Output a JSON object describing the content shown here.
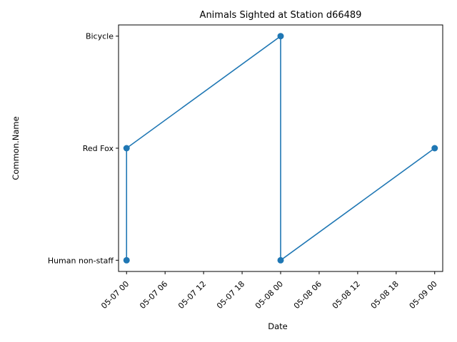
{
  "chart_data": {
    "type": "line",
    "title": "Animals Sighted at Station d66489",
    "xlabel": "Date",
    "ylabel": "Common.Name",
    "y_categories": [
      "Human non-staff",
      "Red Fox",
      "Bicycle"
    ],
    "x_tick_labels": [
      "05-07 00",
      "05-07 06",
      "05-07 12",
      "05-07 18",
      "05-08 00",
      "05-08 06",
      "05-08 12",
      "05-08 18",
      "05-09 00"
    ],
    "xlim": [
      "2023-05-06 22:45",
      "2023-05-09 01:15"
    ],
    "series": [
      {
        "x": [
          "2023-05-07 00:00",
          "2023-05-07 00:00",
          "2023-05-08 00:00",
          "2023-05-08 00:00",
          "2023-05-09 00:00"
        ],
        "y": [
          "Human non-staff",
          "Red Fox",
          "Bicycle",
          "Human non-staff",
          "Red Fox"
        ]
      }
    ],
    "grid": false,
    "legend": "none",
    "marker": "circle",
    "color": "#1f77b4"
  }
}
